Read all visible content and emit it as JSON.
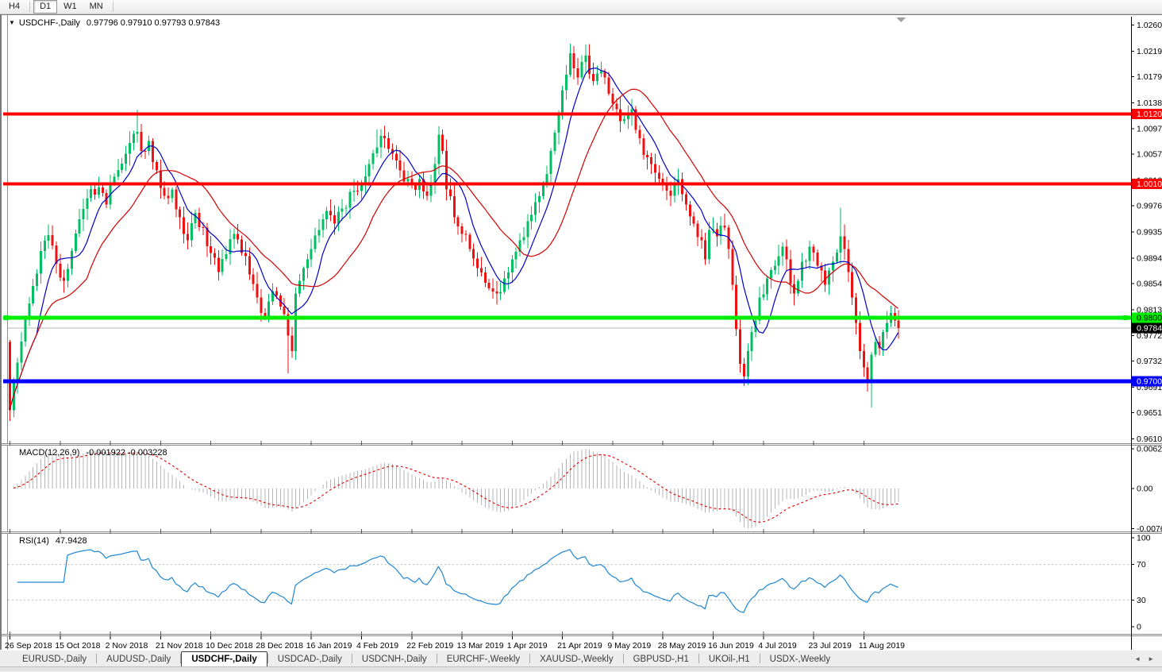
{
  "toolbar": {
    "timeframes": [
      {
        "label": "H4",
        "active": false,
        "separator_after": true
      },
      {
        "label": "D1",
        "active": true,
        "separator_after": false
      },
      {
        "label": "W1",
        "active": false,
        "separator_after": false
      },
      {
        "label": "MN",
        "active": false,
        "separator_after": true
      }
    ]
  },
  "header": {
    "arrow": "▼",
    "title": "USDCHF-,Daily",
    "ohlc": "0.97796 0.97910 0.97793 0.97843"
  },
  "colors": {
    "bull": "#00bf63",
    "bear": "#ee1111",
    "ma_fast": "#0000c8",
    "ma_slow": "#d20000",
    "macd_hist": "#b5b5b5",
    "macd_signal": "#e00000",
    "rsi_line": "#1f86d2",
    "rsi_levels": "#c0c0c0",
    "current_price_line": "#b4b4b4",
    "axis_text": "#000000",
    "shift_marker": "#a0a0a0"
  },
  "chart_data": {
    "type": "candlestick",
    "symbol": "USDCHF-",
    "timeframe": "Daily",
    "ohlc_display": {
      "open": "0.97796",
      "high": "0.97910",
      "low": "0.97793",
      "close": "0.97843"
    },
    "price_axis": {
      "ticks": [
        "1.02600",
        "1.02190",
        "1.01790",
        "1.01380",
        "1.00970",
        "1.00570",
        "1.00160",
        "0.99760",
        "0.99350",
        "0.98940",
        "0.98540",
        "0.98130",
        "0.97720",
        "0.97320",
        "0.96910",
        "0.96510",
        "0.96100"
      ]
    },
    "date_axis": {
      "labels": [
        "26 Sep 2018",
        "15 Oct 2018",
        "2 Nov 2018",
        "21 Nov 2018",
        "10 Dec 2018",
        "28 Dec 2018",
        "16 Jan 2019",
        "4 Feb 2019",
        "22 Feb 2019",
        "13 Mar 2019",
        "1 Apr 2019",
        "21 Apr 2019",
        "9 May 2019",
        "28 May 2019",
        "16 Jun 2019",
        "4 Jul 2019",
        "23 Jul 2019",
        "11 Aug 2019"
      ],
      "candles_per_label": 13
    },
    "candles": {
      "count": 231,
      "first_open": 0.9762,
      "close_anchors": [
        [
          0,
          0.9655
        ],
        [
          2,
          0.973
        ],
        [
          4,
          0.98
        ],
        [
          6,
          0.985
        ],
        [
          8,
          0.9905
        ],
        [
          10,
          0.993
        ],
        [
          12,
          0.9885
        ],
        [
          14,
          0.9858
        ],
        [
          16,
          0.9905
        ],
        [
          18,
          0.9955
        ],
        [
          20,
          0.9988
        ],
        [
          23,
          1.0005
        ],
        [
          25,
          0.9978
        ],
        [
          27,
          1.0022
        ],
        [
          30,
          1.0058
        ],
        [
          33,
          1.0092
        ],
        [
          34,
          1.0062
        ],
        [
          36,
          1.0078
        ],
        [
          38,
          1.0032
        ],
        [
          40,
          0.9992
        ],
        [
          42,
          1.0002
        ],
        [
          44,
          0.9958
        ],
        [
          46,
          0.9922
        ],
        [
          48,
          0.9965
        ],
        [
          50,
          0.9942
        ],
        [
          52,
          0.9902
        ],
        [
          54,
          0.9872
        ],
        [
          56,
          0.99
        ],
        [
          58,
          0.9932
        ],
        [
          60,
          0.9902
        ],
        [
          62,
          0.9868
        ],
        [
          64,
          0.9832
        ],
        [
          66,
          0.9802
        ],
        [
          68,
          0.9842
        ],
        [
          70,
          0.9818
        ],
        [
          72,
          0.9772
        ],
        [
          73,
          0.9748
        ],
        [
          74,
          0.9838
        ],
        [
          76,
          0.9878
        ],
        [
          78,
          0.9908
        ],
        [
          80,
          0.9938
        ],
        [
          82,
          0.9968
        ],
        [
          84,
          0.9948
        ],
        [
          86,
          0.9972
        ],
        [
          88,
          0.9998
        ],
        [
          91,
          1.0012
        ],
        [
          93,
          1.0042
        ],
        [
          95,
          1.0068
        ],
        [
          97,
          1.0082
        ],
        [
          99,
          1.0058
        ],
        [
          101,
          1.0032
        ],
        [
          104,
          1.0008
        ],
        [
          106,
          1.0018
        ],
        [
          108,
          0.9992
        ],
        [
          110,
          1.0042
        ],
        [
          111,
          1.0088
        ],
        [
          112,
          1.0062
        ],
        [
          113,
          1.0002
        ],
        [
          115,
          0.9958
        ],
        [
          117,
          0.9932
        ],
        [
          119,
          0.9908
        ],
        [
          121,
          0.9878
        ],
        [
          123,
          0.9855
        ],
        [
          126,
          0.9838
        ],
        [
          128,
          0.9862
        ],
        [
          130,
          0.9892
        ],
        [
          132,
          0.9922
        ],
        [
          134,
          0.9952
        ],
        [
          136,
          0.9982
        ],
        [
          138,
          1.0012
        ],
        [
          140,
          1.0062
        ],
        [
          142,
          1.0122
        ],
        [
          144,
          1.0182
        ],
        [
          145,
          1.0216
        ],
        [
          146,
          1.0192
        ],
        [
          147,
          1.0178
        ],
        [
          148,
          1.0202
        ],
        [
          149,
          1.0212
        ],
        [
          151,
          1.0172
        ],
        [
          153,
          1.0188
        ],
        [
          155,
          1.0152
        ],
        [
          157,
          1.0128
        ],
        [
          159,
          1.0112
        ],
        [
          161,
          1.0128
        ],
        [
          163,
          1.0082
        ],
        [
          165,
          1.0052
        ],
        [
          167,
          1.0028
        ],
        [
          169,
          1.0008
        ],
        [
          171,
          0.9992
        ],
        [
          173,
          1.0018
        ],
        [
          175,
          0.9978
        ],
        [
          177,
          0.9948
        ],
        [
          179,
          0.9922
        ],
        [
          180,
          0.9892
        ],
        [
          181,
          0.9938
        ],
        [
          183,
          0.9928
        ],
        [
          185,
          0.9942
        ],
        [
          186,
          0.9908
        ],
        [
          187,
          0.9852
        ],
        [
          188,
          0.9782
        ],
        [
          189,
          0.9728
        ],
        [
          190,
          0.9708
        ],
        [
          191,
          0.9748
        ],
        [
          192,
          0.9778
        ],
        [
          194,
          0.9832
        ],
        [
          196,
          0.9862
        ],
        [
          198,
          0.9882
        ],
        [
          200,
          0.9912
        ],
        [
          201,
          0.9892
        ],
        [
          203,
          0.9838
        ],
        [
          204,
          0.9858
        ],
        [
          205,
          0.9888
        ],
        [
          207,
          0.9912
        ],
        [
          209,
          0.9882
        ],
        [
          211,
          0.9852
        ],
        [
          213,
          0.9888
        ],
        [
          215,
          0.9928
        ],
        [
          216,
          0.9908
        ],
        [
          217,
          0.9872
        ],
        [
          218,
          0.9832
        ],
        [
          219,
          0.9792
        ],
        [
          220,
          0.9748
        ],
        [
          221,
          0.9722
        ],
        [
          222,
          0.9702
        ],
        [
          223,
          0.9742
        ],
        [
          224,
          0.9762
        ],
        [
          225,
          0.9752
        ],
        [
          226,
          0.9778
        ],
        [
          227,
          0.9792
        ],
        [
          228,
          0.9808
        ],
        [
          229,
          0.9796
        ],
        [
          230,
          0.9784
        ]
      ],
      "special_wicks": [
        [
          0,
          "low",
          0.9638
        ],
        [
          33,
          "high",
          1.0127
        ],
        [
          72,
          "low",
          0.9713
        ],
        [
          95,
          "high",
          1.0096
        ],
        [
          126,
          "low",
          0.9821
        ],
        [
          145,
          "high",
          1.0231
        ],
        [
          149,
          "high",
          1.0222
        ],
        [
          190,
          "low",
          0.9693
        ],
        [
          215,
          "high",
          0.9973
        ],
        [
          222,
          "low",
          0.9686
        ],
        [
          223,
          "low",
          0.9659
        ]
      ]
    },
    "moving_averages": [
      {
        "name": "fast-ma",
        "period": 8
      },
      {
        "name": "slow-ma",
        "period": 21
      }
    ],
    "hlines": [
      {
        "price": 1.01205,
        "label": "1.01205",
        "color": "#ff0000",
        "stroke": 4,
        "text_color": "#ffffff",
        "handles": false
      },
      {
        "price": 1.00106,
        "label": "1.00106",
        "color": "#ff0000",
        "stroke": 4,
        "text_color": "#ffffff",
        "handles": false
      },
      {
        "price": 0.98004,
        "label": "0.98004",
        "color": "#00ee00",
        "stroke": 5,
        "text_color": "#000000",
        "handles": true
      },
      {
        "price": 0.97001,
        "label": "0.97001",
        "color": "#0000ff",
        "stroke": 5,
        "text_color": "#ffffff",
        "handles": false
      }
    ],
    "current_price": {
      "value": 0.97843,
      "label": "0.97843",
      "box_color": "#000000",
      "text_color": "#ffffff"
    },
    "macd": {
      "label": "MACD(12,26,9)",
      "values_text": "-0.001922 -0.003228",
      "params": [
        12,
        26,
        9
      ],
      "axis_ticks": [
        "0.006286",
        "0.00",
        "-0.00762"
      ]
    },
    "rsi": {
      "label": "RSI(14)",
      "value_text": "47.9428",
      "period": 14,
      "axis_ticks": [
        "100",
        "70",
        "30",
        "0"
      ],
      "levels": [
        70,
        30
      ]
    }
  },
  "tabs": {
    "items": [
      {
        "label": "EURUSD-,Daily",
        "active": false
      },
      {
        "label": "AUDUSD-,Daily",
        "active": false
      },
      {
        "label": "USDCHF-,Daily",
        "active": true
      },
      {
        "label": "USDCAD-,Daily",
        "active": false
      },
      {
        "label": "USDCNH-,Daily",
        "active": false
      },
      {
        "label": "EURCHF-,Weekly",
        "active": false
      },
      {
        "label": "XAUUSD-,Weekly",
        "active": false
      },
      {
        "label": "GBPUSD-,H1",
        "active": false
      },
      {
        "label": "UKOil-,H1",
        "active": false
      },
      {
        "label": "USDX-,Weekly",
        "active": false
      }
    ],
    "scroll_left": "◄",
    "scroll_right": "►"
  }
}
